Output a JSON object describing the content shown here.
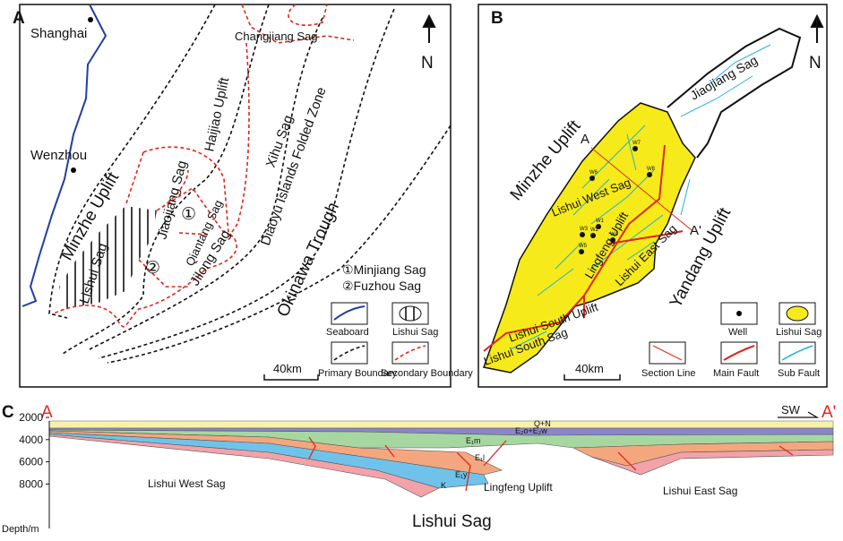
{
  "panel_a": {
    "label": "A",
    "north": "N",
    "cities": [
      "Shanghai",
      "Wenzhou"
    ],
    "regions": {
      "minzhe": "Minzhe Uplift",
      "lishui": "Lishui Sag",
      "jiaojiang": "Jiaojiang Sag",
      "qiantang": "Qiantang Sag",
      "jilong": "Jilong Sag",
      "haijiao": "Haijiao Uplift",
      "changjiang": "Changjiang Sag",
      "xihu": "Xihu Sag",
      "diaoyu": "Diaoyu Islands Folded Zone",
      "okinawa": "Okinawa Trough",
      "circle1": "①",
      "circle2": "②"
    },
    "notes": [
      "①Minjiang Sag",
      "②Fuzhou Sag"
    ],
    "scale": "40km",
    "legend": [
      "Seaboard",
      "Lishui Sag",
      "Primary Boundary",
      "Secondary Boundary"
    ]
  },
  "panel_b": {
    "label": "B",
    "north": "N",
    "regions": {
      "jiaojiang": "Jiaojiang Sag",
      "minzhe": "Minzhe Uplift",
      "west": "Lishui West Sag",
      "lingfeng": "Lingfeng Uplift",
      "east": "Lishui East Sag",
      "south_uplift": "Lishui South Uplift",
      "south_sag": "Lishui South Sag",
      "yandang": "Yandang Uplift"
    },
    "section_ends": [
      "A",
      "A'"
    ],
    "wells": [
      "W1",
      "W2",
      "W3",
      "W4",
      "W5",
      "W6",
      "W7",
      "W8"
    ],
    "scale": "40km",
    "legend": [
      "Well",
      "Lishui Sag",
      "Section Line",
      "Main Fault",
      "Sub Fault"
    ]
  },
  "panel_c": {
    "label": "C",
    "ends": [
      "A",
      "A'"
    ],
    "direction": "SW",
    "depth_ticks": [
      2000,
      4000,
      6000,
      8000
    ],
    "depth_label": "Depth/m",
    "layers": [
      "Q+N",
      "E₂o+E₂w",
      "E₁m",
      "E₁l",
      "E₁y",
      "K"
    ],
    "regions": [
      "Lishui West Sag",
      "Lingfeng Uplift",
      "Lishui East Sag"
    ],
    "title": "Lishui Sag"
  }
}
